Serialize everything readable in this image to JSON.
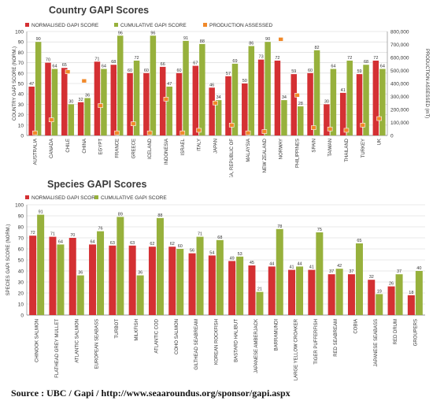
{
  "chart_data": [
    {
      "type": "bar",
      "title": "Country GAPI Scores",
      "ylabel": "COUNTRY GAPI SCORE (NORM.)",
      "y2label": "PRODUCTION ASSESSED (mT)",
      "ylim": [
        0,
        100
      ],
      "y2lim": [
        0,
        800000
      ],
      "y2ticks": [
        "0",
        "100,000",
        "200,000",
        "300,000",
        "400,000",
        "500,000",
        "600,000",
        "700,000",
        "800,000"
      ],
      "categories": [
        "AUSTRALIA",
        "CANADA",
        "CHILE",
        "CHINA",
        "EGYPT",
        "FRANCE",
        "GREECE",
        "ICELAND",
        "INDONESIA",
        "ISRAEL",
        "ITALY",
        "JAPAN",
        "KOREA, REPUBLIC OF",
        "MALAYSIA",
        "NEW ZEALAND",
        "NORWAY",
        "PHILIPPINES",
        "SPAIN",
        "TAIWAN",
        "THAILAND",
        "TURKEY",
        "UK"
      ],
      "series": [
        {
          "name": "NORMALISED GAPI SCORE",
          "values": [
            47,
            70,
            65,
            32,
            71,
            68,
            60,
            60,
            66,
            60,
            67,
            46,
            57,
            50,
            73,
            72,
            59,
            60,
            30,
            41,
            59,
            72
          ],
          "color": "#d43033"
        },
        {
          "name": "CUMULATIVE GAPI SCORE",
          "values": [
            90,
            64,
            30,
            36,
            64,
            96,
            72,
            96,
            47,
            91,
            88,
            34,
            69,
            86,
            90,
            34,
            28,
            82,
            64,
            72,
            68,
            64
          ],
          "color": "#97b13c"
        },
        {
          "name": "PRODUCTION ASSESSED",
          "values": [
            20000,
            120000,
            490000,
            420000,
            230000,
            20000,
            90000,
            20000,
            280000,
            20000,
            40000,
            250000,
            80000,
            20000,
            30000,
            740000,
            310000,
            60000,
            50000,
            40000,
            80000,
            130000
          ],
          "color": "#f0892a"
        }
      ]
    },
    {
      "type": "bar",
      "title": "Species GAPI Scores",
      "ylabel": "SPECIES GAPI SCORE (NORM.)",
      "ylim": [
        0,
        100
      ],
      "categories": [
        "CHINOOK SALMON",
        "FLATHEAD GREY MULLET",
        "ATLANTIC SALMON",
        "EUROPEAN SEABASS",
        "TURBOT",
        "MILKFISH",
        "ATLANTIC COD",
        "COHO SALMON",
        "GILTHEAD SEABREAM",
        "KOREAN ROCKFISH",
        "BASTARD HALIBUT",
        "JAPANESE AMBERJACK",
        "BARRAMUNDI",
        "LARGE YELLOW CROAKER",
        "TIGER PUFFERFISH",
        "RED SEABREAM",
        "COBIA",
        "JAPANESE SEABASS",
        "RED DRUM",
        "GROUPERS"
      ],
      "series": [
        {
          "name": "NORMALISED GAPI SCORE",
          "values": [
            72,
            71,
            70,
            64,
            63,
            63,
            62,
            62,
            56,
            54,
            49,
            45,
            44,
            41,
            41,
            37,
            37,
            32,
            26,
            18
          ],
          "color": "#d43033"
        },
        {
          "name": "CUMULATIVE GAPI SCORE",
          "values": [
            91,
            64,
            36,
            76,
            89,
            36,
            88,
            60,
            71,
            68,
            53,
            21,
            78,
            44,
            75,
            42,
            65,
            19,
            37,
            40
          ],
          "color": "#97b13c"
        }
      ]
    }
  ],
  "source": "Source : UBC / Gapi / http://www.seaaroundus.org/sponsor/gapi.aspx"
}
